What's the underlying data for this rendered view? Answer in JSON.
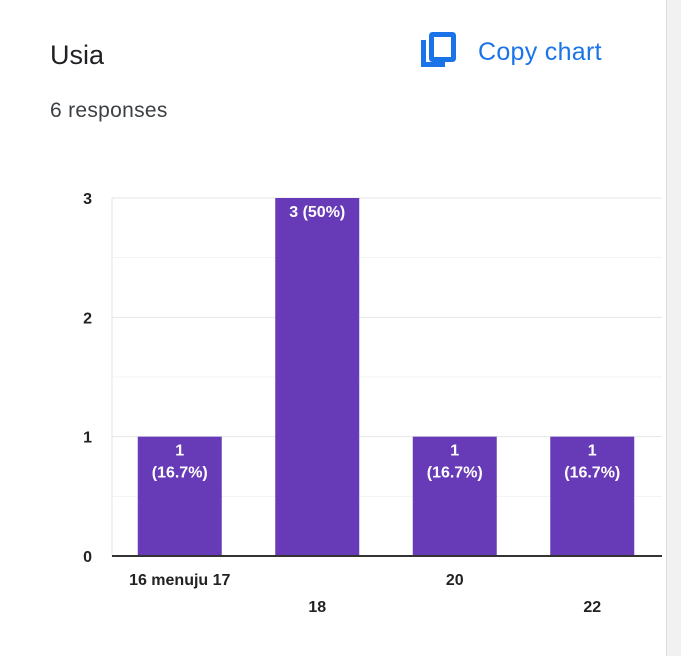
{
  "header": {
    "title": "Usia",
    "responses": "6 responses",
    "copy_label": "Copy chart"
  },
  "colors": {
    "bar": "#673ab7",
    "accent": "#1a73e8"
  },
  "icons": {
    "copy": "copy-icon"
  },
  "chart_data": {
    "type": "bar",
    "categories": [
      "16 menuju 17",
      "18",
      "20",
      "22"
    ],
    "values": [
      1,
      3,
      1,
      1
    ],
    "data_labels": [
      "1 (16.7%)",
      "3 (50%)",
      "1 (16.7%)",
      "1 (16.7%)"
    ],
    "yticks": [
      0,
      1,
      2,
      3
    ],
    "ylim": [
      0,
      3
    ],
    "grid": true,
    "title": "",
    "xlabel": "",
    "ylabel": ""
  }
}
